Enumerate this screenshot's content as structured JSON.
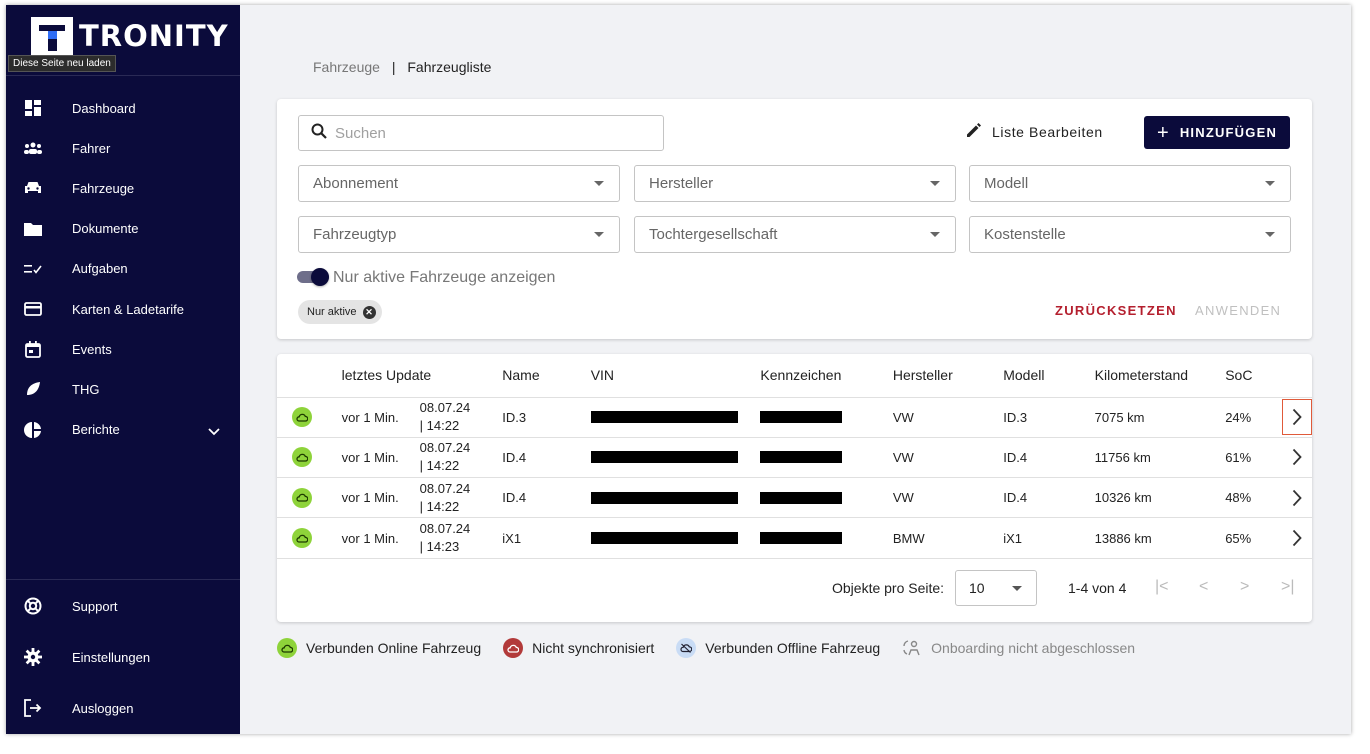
{
  "app": {
    "brand": "TRONITY",
    "tooltip": "Diese Seite neu laden"
  },
  "sidebar": {
    "items": [
      {
        "label": "Dashboard",
        "icon": "dashboard-icon"
      },
      {
        "label": "Fahrer",
        "icon": "people-icon"
      },
      {
        "label": "Fahrzeuge",
        "icon": "car-icon"
      },
      {
        "label": "Dokumente",
        "icon": "folder-icon"
      },
      {
        "label": "Aufgaben",
        "icon": "checklist-icon"
      },
      {
        "label": "Karten & Ladetarife",
        "icon": "card-icon"
      },
      {
        "label": "Events",
        "icon": "calendar-icon"
      },
      {
        "label": "THG",
        "icon": "leaf-icon"
      },
      {
        "label": "Berichte",
        "icon": "pie-chart-icon"
      }
    ],
    "bottom": [
      {
        "label": "Support",
        "icon": "lifebuoy-icon"
      },
      {
        "label": "Einstellungen",
        "icon": "gear-icon"
      },
      {
        "label": "Ausloggen",
        "icon": "logout-icon"
      }
    ]
  },
  "breadcrumb": {
    "parent": "Fahrzeuge",
    "separator": "|",
    "current": "Fahrzeugliste"
  },
  "toolbar": {
    "search_placeholder": "Suchen",
    "edit_label": "Liste Bearbeiten",
    "add_label": "HINZUFÜGEN"
  },
  "filters": {
    "row1": [
      "Abonnement",
      "Hersteller",
      "Modell"
    ],
    "row2": [
      "Fahrzeugtyp",
      "Tochtergesellschaft",
      "Kostenstelle"
    ],
    "toggle_label": "Nur aktive Fahrzeuge anzeigen",
    "toggle_on": true,
    "chip": "Nur aktive",
    "reset": "ZURÜCKSETZEN",
    "apply": "ANWENDEN"
  },
  "table": {
    "headers": [
      "letztes Update",
      "Name",
      "VIN",
      "Kennzeichen",
      "Hersteller",
      "Modell",
      "Kilometerstand",
      "SoC"
    ],
    "rows": [
      {
        "update": "vor 1 Min.",
        "date": "08.07.24",
        "time": "| 14:22",
        "name": "ID.3",
        "maker": "VW",
        "model": "ID.3",
        "km": "7075 km",
        "soc": "24%"
      },
      {
        "update": "vor 1 Min.",
        "date": "08.07.24",
        "time": "| 14:22",
        "name": "ID.4",
        "maker": "VW",
        "model": "ID.4",
        "km": "11756 km",
        "soc": "61%"
      },
      {
        "update": "vor 1 Min.",
        "date": "08.07.24",
        "time": "| 14:22",
        "name": "ID.4",
        "maker": "VW",
        "model": "ID.4",
        "km": "10326 km",
        "soc": "48%"
      },
      {
        "update": "vor 1 Min.",
        "date": "08.07.24",
        "time": "| 14:23",
        "name": "iX1",
        "maker": "BMW",
        "model": "iX1",
        "km": "13886 km",
        "soc": "65%"
      }
    ]
  },
  "pagination": {
    "per_page_label": "Objekte pro Seite:",
    "per_page": "10",
    "range": "1-4 von 4"
  },
  "legend": [
    {
      "label": "Verbunden Online Fahrzeug",
      "color": "#8ed33a"
    },
    {
      "label": "Nicht synchronisiert",
      "color": "#b23a3a"
    },
    {
      "label": "Verbunden Offline Fahrzeug",
      "color": "#c9dcf5"
    },
    {
      "label": "Onboarding nicht abgeschlossen",
      "color": "#888888"
    }
  ],
  "colors": {
    "sidebar": "#0b0b3b",
    "accent_red": "#b41f2e",
    "online_green": "#8ed33a"
  }
}
